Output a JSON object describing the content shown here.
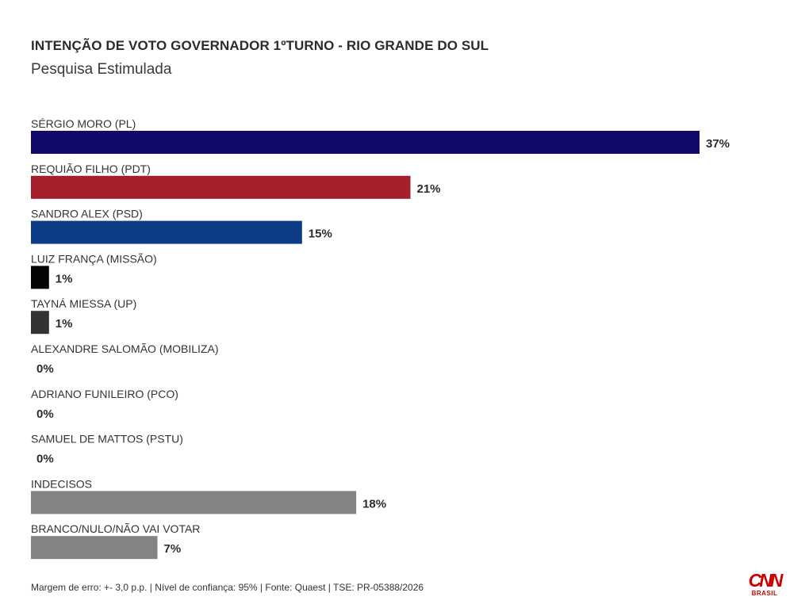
{
  "header": {
    "title": "INTENÇÃO DE VOTO GOVERNADOR 1ºTURNO - RIO GRANDE DO SUL",
    "subtitle": "Pesquisa Estimulada"
  },
  "chart_data": {
    "type": "bar",
    "orientation": "horizontal",
    "title": "INTENÇÃO DE VOTO GOVERNADOR 1ºTURNO - RIO GRANDE DO SUL",
    "subtitle": "Pesquisa Estimulada",
    "xlabel": "",
    "ylabel": "",
    "unit": "%",
    "xlim": [
      0,
      37
    ],
    "grid": false,
    "legend": "none",
    "categories": [
      "SÉRGIO MORO (PL)",
      "REQUIÃO FILHO (PDT)",
      "SANDRO ALEX (PSD)",
      "LUIZ FRANÇA (MISSÃO)",
      "TAYNÁ MIESSA (UP)",
      "ALEXANDRE SALOMÃO (MOBILIZA)",
      "ADRIANO FUNILEIRO (PCO)",
      "SAMUEL DE MATTOS (PSTU)",
      "INDECISOS",
      "BRANCO/NULO/NÃO VAI VOTAR"
    ],
    "values": [
      37,
      21,
      15,
      1,
      1,
      0,
      0,
      0,
      18,
      7
    ],
    "value_labels": [
      "37%",
      "21%",
      "15%",
      "1%",
      "1%",
      "0%",
      "0%",
      "0%",
      "18%",
      "7%"
    ],
    "colors": [
      "#120a6b",
      "#a31f2a",
      "#0b3c84",
      "#050505",
      "#333333",
      "#888888",
      "#888888",
      "#888888",
      "#838383",
      "#838383"
    ]
  },
  "footer": {
    "note": "Margem de erro: +- 3,0 p.p. | Nível de confiança: 95% | Fonte: Quaest | TSE: PR-05388/2026"
  },
  "logo": {
    "mark": "CNN",
    "sub": "BRASIL",
    "color": "#cc0000"
  }
}
